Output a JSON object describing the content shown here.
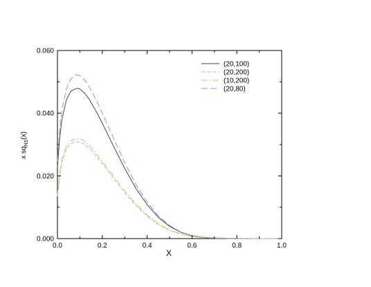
{
  "chart_data": {
    "type": "line",
    "title": "",
    "xlabel": "X",
    "ylabel_main": "x sq",
    "ylabel_sub": "NS",
    "ylabel_tail": "(x)",
    "xlim": [
      0.0,
      1.0
    ],
    "ylim": [
      0.0,
      0.06
    ],
    "xticks": [
      "0.0",
      "0.2",
      "0.4",
      "0.6",
      "0.8",
      "1.0"
    ],
    "yticks": [
      "0.000",
      "0.020",
      "0.040",
      "0.060"
    ],
    "grid": false,
    "legend_position": "top-right",
    "series": [
      {
        "name": "(20,100)",
        "color": "#444444",
        "dash": "solid",
        "x": [
          0.0,
          0.01,
          0.02,
          0.04,
          0.06,
          0.08,
          0.09,
          0.1,
          0.12,
          0.14,
          0.16,
          0.18,
          0.2,
          0.25,
          0.3,
          0.35,
          0.4,
          0.45,
          0.5,
          0.55,
          0.6,
          0.65,
          0.7,
          0.8,
          0.9,
          1.0
        ],
        "y": [
          0.0228,
          0.032,
          0.038,
          0.0443,
          0.047,
          0.0478,
          0.0479,
          0.0477,
          0.0465,
          0.0446,
          0.0422,
          0.0396,
          0.0368,
          0.0295,
          0.0224,
          0.016,
          0.0108,
          0.0068,
          0.0039,
          0.002,
          0.0009,
          0.0004,
          0.0002,
          3e-05,
          0.0,
          0.0
        ]
      },
      {
        "name": "(20,200)",
        "color": "#e9a3a3",
        "dash": "5,3",
        "x": [
          0.0,
          0.01,
          0.02,
          0.04,
          0.06,
          0.08,
          0.1,
          0.12,
          0.14,
          0.16,
          0.18,
          0.2,
          0.25,
          0.3,
          0.35,
          0.4,
          0.45,
          0.5,
          0.55,
          0.6,
          0.65,
          0.7,
          0.8,
          0.9,
          1.0
        ],
        "y": [
          0.0135,
          0.02,
          0.0245,
          0.0287,
          0.0303,
          0.0309,
          0.0308,
          0.0301,
          0.0289,
          0.0274,
          0.0257,
          0.0239,
          0.0193,
          0.0147,
          0.0106,
          0.0072,
          0.0045,
          0.0026,
          0.0014,
          0.0007,
          0.0003,
          0.0001,
          2e-05,
          0.0,
          0.0
        ]
      },
      {
        "name": "(10,200)",
        "color": "#9fd46f",
        "dash": "8,3,2,3",
        "x": [
          0.0,
          0.01,
          0.02,
          0.04,
          0.06,
          0.08,
          0.1,
          0.12,
          0.14,
          0.16,
          0.18,
          0.2,
          0.25,
          0.3,
          0.35,
          0.4,
          0.45,
          0.5,
          0.55,
          0.6,
          0.65,
          0.7,
          0.8,
          0.9,
          1.0
        ],
        "y": [
          0.014,
          0.021,
          0.0253,
          0.0295,
          0.0312,
          0.0318,
          0.0318,
          0.0311,
          0.0298,
          0.0283,
          0.0265,
          0.0246,
          0.0199,
          0.0152,
          0.011,
          0.0075,
          0.0047,
          0.0027,
          0.0015,
          0.0007,
          0.0003,
          0.0001,
          2e-05,
          0.0,
          0.0
        ]
      },
      {
        "name": "(20,80)",
        "color": "#8f8fe8",
        "dash": "9,4",
        "x": [
          0.0,
          0.01,
          0.02,
          0.04,
          0.06,
          0.08,
          0.09,
          0.1,
          0.12,
          0.14,
          0.16,
          0.18,
          0.2,
          0.25,
          0.3,
          0.35,
          0.4,
          0.45,
          0.5,
          0.55,
          0.6,
          0.65,
          0.7,
          0.8,
          0.9,
          1.0
        ],
        "y": [
          0.0245,
          0.0345,
          0.041,
          0.0478,
          0.051,
          0.0521,
          0.0522,
          0.052,
          0.0507,
          0.0486,
          0.046,
          0.0431,
          0.04,
          0.032,
          0.0242,
          0.0173,
          0.0116,
          0.0073,
          0.0042,
          0.0021,
          0.001,
          0.0004,
          0.0002,
          3e-05,
          0.0,
          0.0
        ]
      }
    ]
  }
}
